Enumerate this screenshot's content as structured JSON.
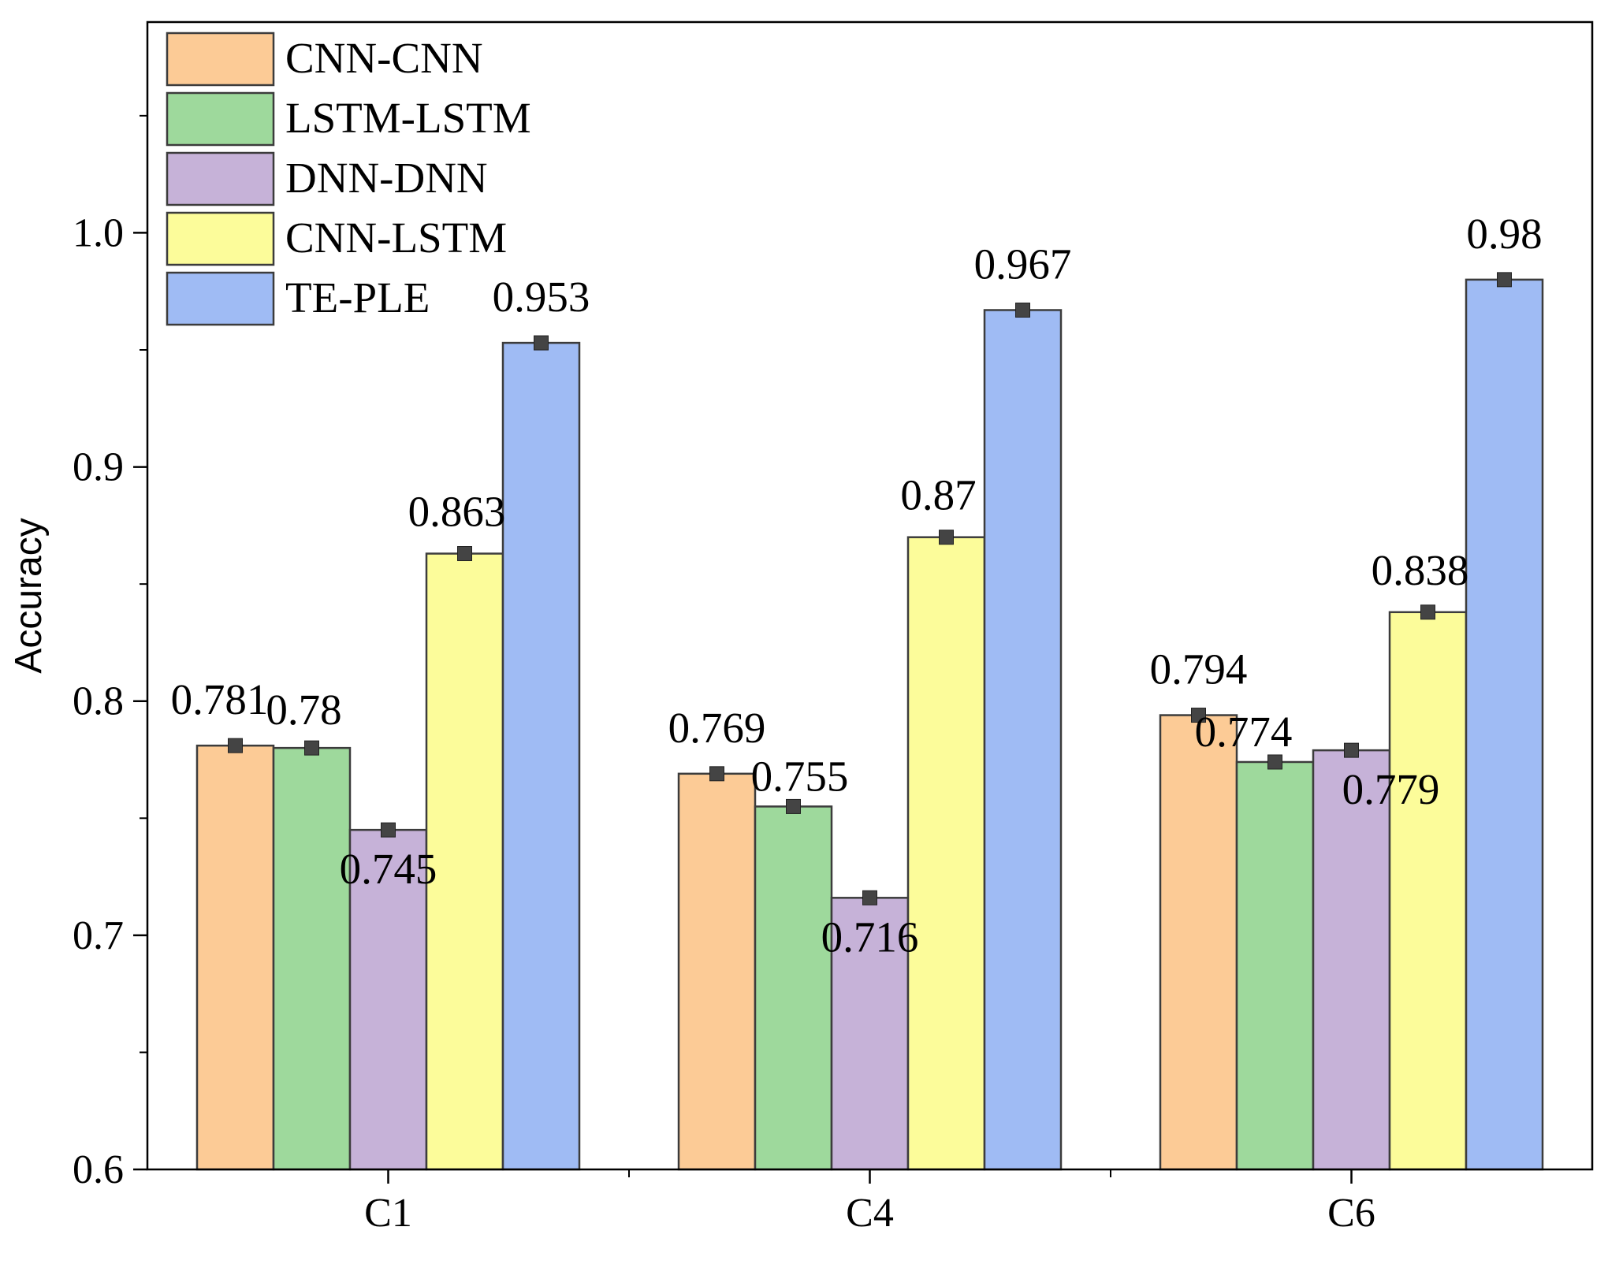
{
  "chart_data": {
    "type": "bar",
    "title": "",
    "xlabel": "",
    "ylabel": "Accuracy",
    "ylim": [
      0.6,
      1.09
    ],
    "yticks": [
      0.6,
      0.7,
      0.8,
      0.9,
      1.0
    ],
    "ytick_labels": [
      "0.6",
      "0.7",
      "0.8",
      "0.9",
      "1.0"
    ],
    "categories": [
      "C1",
      "C4",
      "C6"
    ],
    "legend_position": "top-left",
    "series": [
      {
        "name": "CNN-CNN",
        "color": "#fccb96",
        "values": [
          0.781,
          0.769,
          0.794
        ],
        "labels": [
          "0.781",
          "0.769",
          "0.794"
        ]
      },
      {
        "name": "LSTM-LSTM",
        "color": "#9ed99c",
        "values": [
          0.78,
          0.755,
          0.774
        ],
        "labels": [
          "0.78",
          "0.755",
          "0.774"
        ]
      },
      {
        "name": "DNN-DNN",
        "color": "#c6b2d8",
        "values": [
          0.745,
          0.716,
          0.779
        ],
        "labels": [
          "0.745",
          "0.716",
          "0.779"
        ]
      },
      {
        "name": "CNN-LSTM",
        "color": "#fcfc9a",
        "values": [
          0.863,
          0.87,
          0.838
        ],
        "labels": [
          "0.863",
          "0.87",
          "0.838"
        ]
      },
      {
        "name": "TE-PLE",
        "color": "#9fbbf4",
        "values": [
          0.953,
          0.967,
          0.98
        ],
        "labels": [
          "0.953",
          "0.967",
          "0.98"
        ]
      }
    ]
  }
}
